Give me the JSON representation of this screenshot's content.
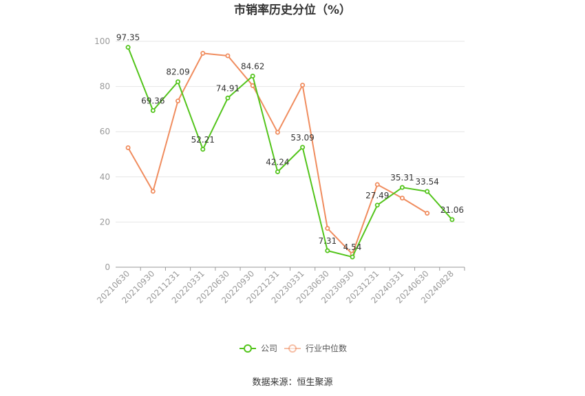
{
  "chart_data": {
    "type": "line",
    "title": "市销率历史分位（%）",
    "categories": [
      "20210630",
      "20210930",
      "20211231",
      "20220331",
      "20220630",
      "20220930",
      "20221231",
      "20230331",
      "20230630",
      "20230930",
      "20231231",
      "20240331",
      "20240630",
      "20240828"
    ],
    "ylim": [
      0,
      100
    ],
    "yticks": [
      0,
      20,
      40,
      60,
      80,
      100
    ],
    "grid": true,
    "legend_position": "bottom-center",
    "series": [
      {
        "name": "公司",
        "color": "#52c41a",
        "values": [
          97.35,
          69.36,
          82.09,
          52.21,
          74.91,
          84.62,
          42.24,
          53.09,
          7.31,
          4.54,
          27.49,
          35.31,
          33.54,
          21.06
        ],
        "labels": [
          "97.35",
          "69.36",
          "82.09",
          "52.21",
          "74.91",
          "84.62",
          "42.24",
          "53.09",
          "7.31",
          "4.54",
          "27.49",
          "35.31",
          "33.54",
          "21.06"
        ]
      },
      {
        "name": "行业中位数",
        "color": "#f08c5e",
        "values": [
          52.9,
          33.6,
          73.6,
          94.7,
          93.6,
          80.4,
          59.7,
          80.6,
          17.2,
          5.8,
          36.6,
          30.6,
          23.9,
          null
        ]
      }
    ]
  },
  "source": "数据来源：恒生聚源"
}
